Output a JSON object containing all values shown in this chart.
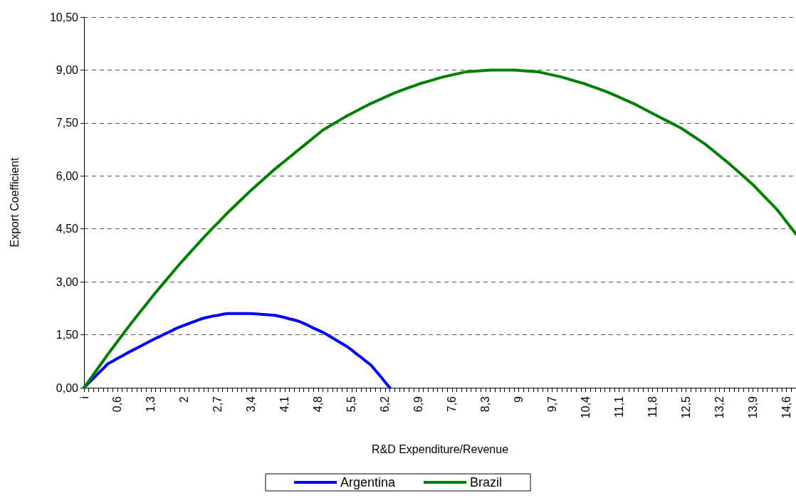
{
  "chart_data": {
    "type": "line",
    "xlabel": "R&D Expenditure/Revenue",
    "ylabel": "Export Coefficient",
    "categories": [
      "i",
      null,
      null,
      null,
      null,
      null,
      null,
      "0,6",
      null,
      null,
      null,
      null,
      null,
      null,
      "1,3",
      null,
      null,
      null,
      null,
      null,
      null,
      "2",
      null,
      null,
      null,
      null,
      null,
      null,
      "2,7",
      null,
      null,
      null,
      null,
      null,
      null,
      "3,4",
      null,
      null,
      null,
      null,
      null,
      null,
      "4,1",
      null,
      null,
      null,
      null,
      null,
      null,
      "4,8",
      null,
      null,
      null,
      null,
      null,
      null,
      "5,5",
      null,
      null,
      null,
      null,
      null,
      null,
      "6,2",
      null,
      null,
      null,
      null,
      null,
      null,
      "6,9",
      null,
      null,
      null,
      null,
      null,
      null,
      "7,6",
      null,
      null,
      null,
      null,
      null,
      null,
      "8,3",
      null,
      null,
      null,
      null,
      null,
      null,
      "9",
      null,
      null,
      null,
      null,
      null,
      null,
      "9,7",
      null,
      null,
      null,
      null,
      null,
      null,
      "10,4",
      null,
      null,
      null,
      null,
      null,
      null,
      "11,1",
      null,
      null,
      null,
      null,
      null,
      null,
      "11,8",
      null,
      null,
      null,
      null,
      null,
      null,
      "12,5",
      null,
      null,
      null,
      null,
      null,
      null,
      "13,2",
      null,
      null,
      null,
      null,
      null,
      null,
      "13,9",
      null,
      null,
      null,
      null,
      null,
      null,
      "14,6",
      null,
      null
    ],
    "series": [
      {
        "name": "Argentina",
        "color": "#0000ff",
        "values": [
          0,
          0.14,
          0.27,
          0.41,
          0.54,
          0.68,
          0.75,
          0.83,
          0.9,
          0.98,
          1.05,
          1.12,
          1.19,
          1.26,
          1.33,
          1.4,
          1.46,
          1.53,
          1.59,
          1.66,
          1.72,
          1.77,
          1.82,
          1.87,
          1.92,
          1.97,
          2.0,
          2.03,
          2.05,
          2.08,
          2.1,
          2.1,
          2.1,
          2.1,
          2.1,
          2.1,
          2.09,
          2.08,
          2.07,
          2.06,
          2.05,
          2.02,
          1.99,
          1.95,
          1.92,
          1.88,
          1.82,
          1.76,
          1.69,
          1.63,
          1.57,
          1.49,
          1.41,
          1.33,
          1.25,
          1.17,
          1.07,
          0.96,
          0.86,
          0.75,
          0.65,
          0.49,
          0.33,
          0.16,
          0,
          null,
          null,
          null,
          null,
          null,
          null,
          null,
          null,
          null,
          null,
          null,
          null,
          null,
          null,
          null,
          null,
          null,
          null,
          null,
          null,
          null,
          null,
          null,
          null,
          null,
          null,
          null,
          null,
          null,
          null,
          null,
          null,
          null,
          null,
          null,
          null,
          null,
          null,
          null,
          null,
          null,
          null,
          null,
          null,
          null,
          null,
          null,
          null,
          null,
          null,
          null,
          null,
          null,
          null,
          null,
          null,
          null,
          null,
          null,
          null,
          null,
          null,
          null,
          null,
          null,
          null,
          null,
          null,
          null,
          null,
          null,
          null,
          null,
          null,
          null,
          null,
          null,
          null,
          null,
          null,
          null,
          null,
          null,
          null,
          null
        ]
      },
      {
        "name": "Brazil",
        "color": "#008000",
        "values": [
          0,
          0.19,
          0.38,
          0.57,
          0.76,
          0.95,
          1.13,
          1.31,
          1.49,
          1.67,
          1.85,
          2.02,
          2.19,
          2.36,
          2.53,
          2.7,
          2.86,
          3.02,
          3.18,
          3.34,
          3.5,
          3.65,
          3.8,
          3.95,
          4.1,
          4.25,
          4.39,
          4.53,
          4.67,
          4.81,
          4.95,
          5.08,
          5.21,
          5.34,
          5.47,
          5.6,
          5.72,
          5.84,
          5.96,
          6.08,
          6.2,
          6.31,
          6.42,
          6.53,
          6.64,
          6.75,
          6.86,
          6.97,
          7.08,
          7.19,
          7.3,
          7.38,
          7.46,
          7.54,
          7.62,
          7.7,
          7.77,
          7.84,
          7.91,
          7.98,
          8.05,
          8.11,
          8.17,
          8.23,
          8.29,
          8.35,
          8.4,
          8.45,
          8.5,
          8.55,
          8.6,
          8.64,
          8.68,
          8.72,
          8.76,
          8.8,
          8.83,
          8.86,
          8.89,
          8.92,
          8.95,
          8.96,
          8.97,
          8.98,
          8.99,
          9.0,
          9.0,
          9.0,
          9.0,
          9.0,
          9.0,
          8.99,
          8.98,
          8.97,
          8.96,
          8.95,
          8.92,
          8.89,
          8.86,
          8.83,
          8.8,
          8.76,
          8.72,
          8.68,
          8.64,
          8.6,
          8.55,
          8.5,
          8.45,
          8.4,
          8.35,
          8.29,
          8.23,
          8.17,
          8.11,
          8.05,
          7.98,
          7.91,
          7.84,
          7.77,
          7.7,
          7.63,
          7.56,
          7.49,
          7.42,
          7.35,
          7.26,
          7.17,
          7.08,
          6.99,
          6.9,
          6.79,
          6.68,
          6.57,
          6.46,
          6.35,
          6.23,
          6.11,
          5.99,
          5.87,
          5.75,
          5.61,
          5.47,
          5.33,
          5.19,
          5.05,
          4.88,
          4.7,
          4.53,
          4.35
        ]
      }
    ],
    "ylim": [
      0,
      10.5
    ],
    "yticks": [
      {
        "value": 0,
        "label": "0,00"
      },
      {
        "value": 1.5,
        "label": "1,50"
      },
      {
        "value": 3,
        "label": "3,00"
      },
      {
        "value": 4.5,
        "label": "4,50"
      },
      {
        "value": 6,
        "label": "6,00"
      },
      {
        "value": 7.5,
        "label": "7,50"
      },
      {
        "value": 9,
        "label": "9,00"
      },
      {
        "value": 10.5,
        "label": "10,50"
      }
    ],
    "grid": "y",
    "legend": "bottom",
    "marker": "none",
    "line_style": "solid"
  }
}
